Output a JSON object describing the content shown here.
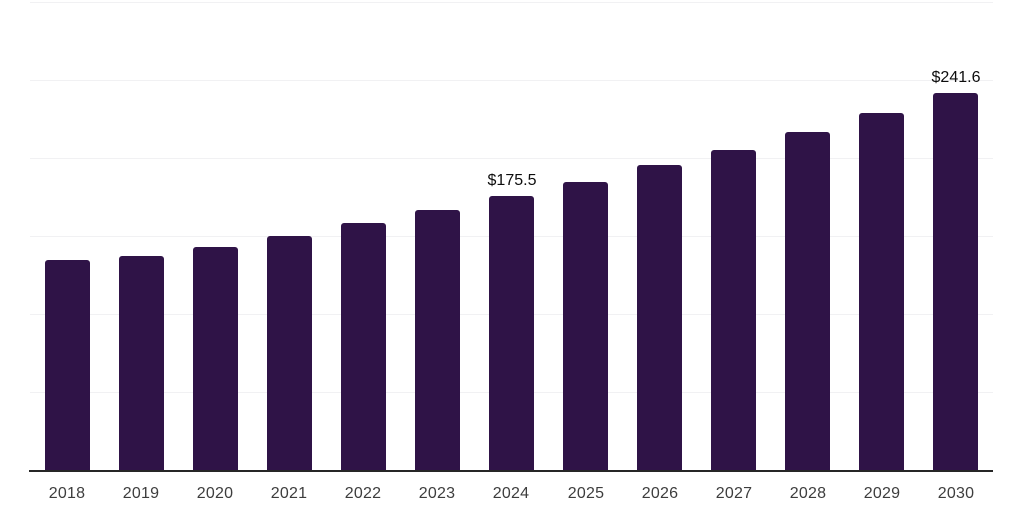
{
  "chart_data": {
    "type": "bar",
    "title": "",
    "xlabel": "",
    "ylabel": "",
    "categories": [
      "2018",
      "2019",
      "2020",
      "2021",
      "2022",
      "2023",
      "2024",
      "2025",
      "2026",
      "2027",
      "2028",
      "2029",
      "2030"
    ],
    "values": [
      134.9,
      137.4,
      143.2,
      150.2,
      158.5,
      166.9,
      175.5,
      184.7,
      195.6,
      205.2,
      216.7,
      228.8,
      241.6
    ],
    "data_labels": {
      "2024": "$175.5",
      "2030": "$241.6"
    },
    "ylim": [
      0,
      300
    ],
    "gridline_step": 50,
    "grid": true,
    "legend": "none"
  },
  "colors": {
    "background": "#ffffff",
    "bar": "#2f1347",
    "gridline": "#f1f1f3",
    "axis_line": "#262626",
    "tick_label": "#3d3d3d",
    "data_label": "#0d0d0d"
  }
}
